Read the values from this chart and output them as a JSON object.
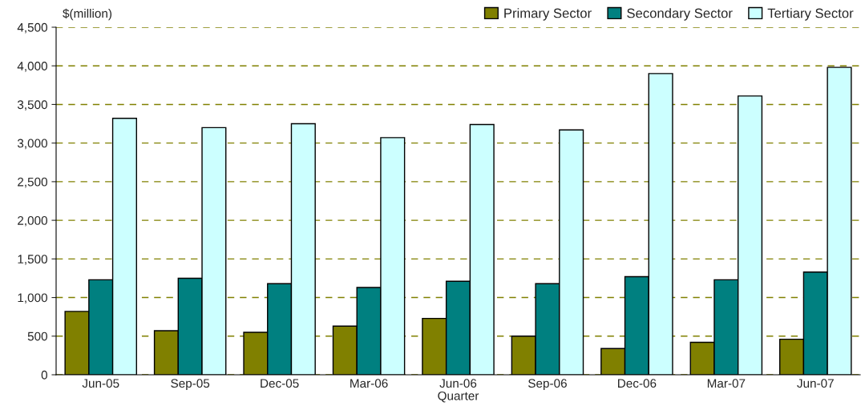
{
  "chart_data": {
    "type": "bar",
    "ylabel": "$(million)",
    "xlabel": "Quarter",
    "categories": [
      "Jun-05",
      "Sep-05",
      "Dec-05",
      "Mar-06",
      "Jun-06",
      "Sep-06",
      "Dec-06",
      "Mar-07",
      "Jun-07"
    ],
    "series": [
      {
        "name": "Primary Sector",
        "color": "#808000",
        "values": [
          820,
          570,
          550,
          630,
          730,
          500,
          340,
          420,
          460
        ]
      },
      {
        "name": "Secondary Sector",
        "color": "#008080",
        "values": [
          1230,
          1250,
          1180,
          1130,
          1210,
          1180,
          1270,
          1230,
          1330
        ]
      },
      {
        "name": "Tertiary Sector",
        "color": "#ccffff",
        "values": [
          3320,
          3200,
          3250,
          3070,
          3240,
          3170,
          3900,
          3610,
          3980
        ]
      }
    ],
    "ylim": [
      0,
      4500
    ],
    "yticks": [
      {
        "value": 0,
        "label": "0"
      },
      {
        "value": 500,
        "label": "500"
      },
      {
        "value": 1000,
        "label": "1,000"
      },
      {
        "value": 1500,
        "label": "1,500"
      },
      {
        "value": 2000,
        "label": "2,000"
      },
      {
        "value": 2500,
        "label": "2,500"
      },
      {
        "value": 3000,
        "label": "3,000"
      },
      {
        "value": 3500,
        "label": "3,500"
      },
      {
        "value": 4000,
        "label": "4,000"
      },
      {
        "value": 4500,
        "label": "4,500"
      }
    ],
    "grid": "y",
    "legend": "top right"
  }
}
